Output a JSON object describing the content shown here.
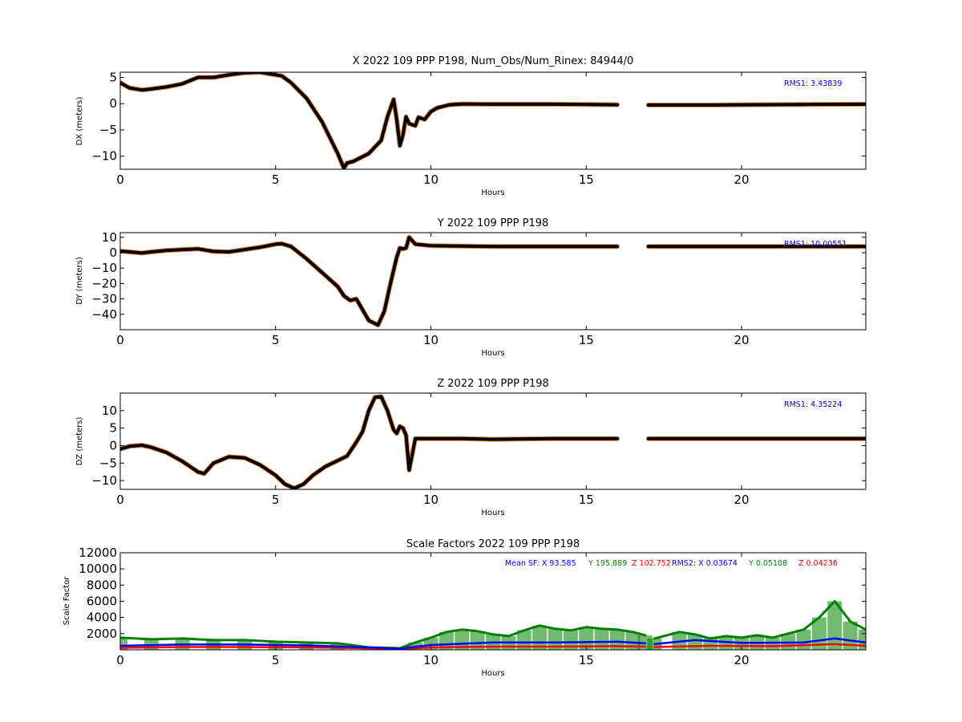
{
  "chart_data": [
    {
      "type": "scatter",
      "title": "X 2022 109 PPP  P198, Num_Obs/Num_Rinex: 84944/0",
      "xlabel": "Hours",
      "ylabel": "DX (meters)",
      "xlim": [
        0,
        24
      ],
      "ylim": [
        -12.5,
        6
      ],
      "xticks": [
        "0",
        "5",
        "10",
        "15",
        "20"
      ],
      "yticks": [
        "5",
        "0",
        "−5",
        "−10"
      ],
      "annotation": {
        "text": "RMS1:  3.43839",
        "color": "#0000ff"
      },
      "gap": [
        16.95,
        17.2
      ],
      "series": [
        {
          "color": "#000000",
          "x": [
            0,
            0.3,
            0.7,
            1.0,
            1.5,
            2.0,
            2.5,
            3.0,
            3.5,
            4.0,
            4.5,
            5.0,
            5.2,
            5.5,
            6.0,
            6.5,
            7.0,
            7.2,
            7.3,
            7.5,
            8.0,
            8.4,
            8.6,
            8.8,
            8.9,
            9.0,
            9.1,
            9.2,
            9.3,
            9.5,
            9.6,
            9.8,
            10.0,
            10.2,
            10.6,
            11.0,
            12.0,
            14.0,
            16.0,
            17.0,
            17.2,
            19.0,
            20.0,
            22.0,
            24.0
          ],
          "y": [
            4.0,
            3.0,
            2.6,
            2.8,
            3.2,
            3.8,
            5.0,
            5.0,
            5.5,
            5.9,
            6.0,
            5.5,
            5.3,
            4.0,
            1.0,
            -3.5,
            -9.5,
            -12.3,
            -11.3,
            -11.0,
            -9.5,
            -7.0,
            -2.5,
            0.8,
            -3.0,
            -8.0,
            -6.0,
            -2.5,
            -3.8,
            -4.2,
            -2.6,
            -3.0,
            -1.5,
            -0.8,
            -0.2,
            -0.05,
            -0.1,
            -0.1,
            -0.2,
            -0.25,
            -0.25,
            -0.25,
            -0.2,
            -0.15,
            -0.1
          ]
        }
      ]
    },
    {
      "type": "scatter",
      "title": "Y 2022 109 PPP  P198",
      "xlabel": "Hours",
      "ylabel": "DY (meters)",
      "xlim": [
        0,
        24
      ],
      "ylim": [
        -50,
        13
      ],
      "xticks": [
        "0",
        "5",
        "10",
        "15",
        "20"
      ],
      "yticks": [
        "10",
        "0",
        "−10",
        "−20",
        "−30",
        "−40"
      ],
      "annotation": {
        "text": "RMS1:  10.00551",
        "color": "#0000ff"
      },
      "gap": [
        16.95,
        17.2
      ],
      "series": [
        {
          "color": "#000000",
          "x": [
            0,
            0.3,
            0.7,
            1.0,
            1.5,
            2.0,
            2.5,
            3.0,
            3.5,
            4.0,
            4.5,
            5.0,
            5.2,
            5.5,
            6.0,
            6.5,
            7.0,
            7.2,
            7.4,
            7.6,
            8.0,
            8.3,
            8.5,
            8.7,
            8.9,
            9.0,
            9.1,
            9.2,
            9.3,
            9.5,
            10.0,
            12.0,
            14.0,
            16.0,
            17.0,
            17.2,
            20.0,
            24.0
          ],
          "y": [
            1.0,
            0.5,
            -0.2,
            0.5,
            1.5,
            2.0,
            2.5,
            0.8,
            0.5,
            2.0,
            3.5,
            5.5,
            5.8,
            4.0,
            -4.0,
            -13.0,
            -22.0,
            -28.0,
            -31.0,
            -30.0,
            -44.0,
            -47.0,
            -38.0,
            -20.0,
            -3.0,
            3.0,
            2.5,
            3.0,
            10.0,
            5.5,
            4.5,
            4.0,
            4.0,
            4.0,
            4.0,
            4.0,
            4.0,
            4.0
          ]
        }
      ]
    },
    {
      "type": "scatter",
      "title": "Z 2022 109 PPP  P198",
      "xlabel": "Hours",
      "ylabel": "DZ (meters)",
      "xlim": [
        0,
        24
      ],
      "ylim": [
        -12.5,
        15
      ],
      "xticks": [
        "0",
        "5",
        "10",
        "15",
        "20"
      ],
      "yticks": [
        "10",
        "5",
        "0",
        "−5",
        "−10"
      ],
      "annotation": {
        "text": "RMS1:  4.35224",
        "color": "#0000ff"
      },
      "gap": [
        16.95,
        17.2
      ],
      "series": [
        {
          "color": "#000000",
          "x": [
            0,
            0.3,
            0.7,
            1.0,
            1.5,
            2.0,
            2.5,
            2.7,
            3.0,
            3.5,
            4.0,
            4.5,
            5.0,
            5.3,
            5.6,
            5.9,
            6.2,
            6.6,
            7.0,
            7.3,
            7.6,
            7.8,
            8.0,
            8.2,
            8.4,
            8.6,
            8.8,
            8.9,
            9.0,
            9.1,
            9.2,
            9.3,
            9.5,
            10.0,
            11.0,
            12.0,
            14.0,
            16.0,
            17.0,
            17.2,
            20.0,
            24.0
          ],
          "y": [
            -1.0,
            -0.2,
            0.1,
            -0.5,
            -2.0,
            -4.5,
            -7.5,
            -8.0,
            -5.0,
            -3.2,
            -3.5,
            -5.5,
            -8.5,
            -11.0,
            -12.2,
            -11.0,
            -8.5,
            -6.0,
            -4.3,
            -3.0,
            1.0,
            4.0,
            10.0,
            13.8,
            14.0,
            10.0,
            4.5,
            3.5,
            5.5,
            5.0,
            3.0,
            -7.0,
            2.0,
            2.0,
            2.0,
            1.8,
            2.0,
            2.0,
            2.0,
            2.0,
            2.0,
            2.0
          ]
        }
      ]
    },
    {
      "type": "scatter",
      "title": "Scale Factors 2022 109 PPP  P198",
      "xlabel": "Hours",
      "ylabel": "Scale Factor",
      "xlim": [
        0,
        24
      ],
      "ylim": [
        0,
        12000
      ],
      "xticks": [
        "0",
        "5",
        "10",
        "15",
        "20"
      ],
      "yticks": [
        "12000",
        "10000",
        "8000",
        "6000",
        "4000",
        "2000"
      ],
      "gap": [
        16.95,
        17.2
      ],
      "annotations": [
        {
          "text": "Mean SF: X  93.585",
          "color": "#0000ff"
        },
        {
          "text": "Y 195.889",
          "color": "#008000"
        },
        {
          "text": "Z 102.752",
          "color": "#ff0000"
        },
        {
          "text": "RMS2: X  0.03674",
          "color": "#0000ff"
        },
        {
          "text": "Y  0.05108",
          "color": "#008000"
        },
        {
          "text": "Z  0.04236",
          "color": "#ff0000"
        }
      ],
      "series": [
        {
          "color": "#008000",
          "x": [
            0,
            1,
            2,
            3,
            4,
            5,
            6,
            7,
            8,
            9,
            9.5,
            10,
            10.5,
            11,
            11.5,
            12,
            12.5,
            13,
            13.5,
            14,
            14.5,
            15,
            15.5,
            16,
            16.5,
            16.9,
            17.2,
            18,
            18.5,
            19,
            19.5,
            20,
            20.5,
            21,
            21.5,
            22,
            22.5,
            23,
            23.5,
            24
          ],
          "y": [
            1500,
            1300,
            1400,
            1200,
            1200,
            1000,
            900,
            800,
            300,
            200,
            900,
            1500,
            2200,
            2500,
            2300,
            1900,
            1700,
            2400,
            3000,
            2600,
            2400,
            2800,
            2600,
            2500,
            2200,
            1800,
            1400,
            2200,
            1900,
            1400,
            1700,
            1500,
            1800,
            1500,
            2000,
            2500,
            4000,
            6000,
            3500,
            2500
          ]
        },
        {
          "color": "#ff0000",
          "x": [
            0,
            2,
            4,
            6,
            8,
            9,
            10,
            12,
            14,
            16,
            16.9,
            17.2,
            19,
            21,
            23,
            24
          ],
          "y": [
            250,
            350,
            350,
            300,
            200,
            100,
            300,
            400,
            400,
            450,
            400,
            350,
            500,
            450,
            700,
            500
          ]
        },
        {
          "color": "#0000ff",
          "x": [
            0,
            2,
            4,
            6,
            8,
            9,
            10,
            12,
            14,
            16,
            16.9,
            17.2,
            18.5,
            20,
            22,
            23,
            24
          ],
          "y": [
            500,
            650,
            650,
            550,
            300,
            150,
            600,
            900,
            900,
            1000,
            800,
            700,
            1200,
            850,
            900,
            1400,
            900
          ]
        }
      ]
    }
  ]
}
